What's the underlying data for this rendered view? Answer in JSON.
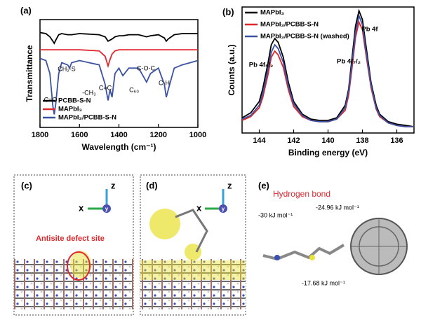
{
  "chart_data": [
    {
      "type": "line",
      "panel": "(a)",
      "xlabel": "Wavelength (cm⁻¹)",
      "ylabel": "Transmittance",
      "xlim": [
        1800,
        1000
      ],
      "xticks": [
        1800,
        1600,
        1400,
        1200,
        1000
      ],
      "ylim": [
        0,
        100
      ],
      "legend": "lower left",
      "x": [
        1800,
        1770,
        1750,
        1735,
        1728,
        1720,
        1705,
        1690,
        1660,
        1650,
        1640,
        1600,
        1500,
        1470,
        1455,
        1445,
        1435,
        1420,
        1400,
        1380,
        1350,
        1300,
        1260,
        1240,
        1200,
        1170,
        1160,
        1150,
        1120,
        1080,
        1040,
        1000
      ],
      "series": [
        {
          "name": "PCBB-S-N",
          "color": "#000000",
          "values": [
            88,
            87,
            84,
            80,
            78,
            81,
            86,
            87,
            86,
            86,
            86,
            87,
            86,
            84,
            80,
            81,
            82,
            84,
            85,
            85,
            86,
            86,
            84,
            85,
            86,
            83,
            80,
            82,
            86,
            87,
            87,
            87
          ]
        },
        {
          "name": "MAPbI₃",
          "color": "#e0262b",
          "values": [
            72,
            72,
            72,
            72,
            72,
            72,
            72,
            72,
            72,
            72,
            72,
            72,
            71,
            66,
            57,
            63,
            68,
            71,
            72,
            72,
            72,
            72,
            72,
            72,
            72,
            72,
            72,
            72,
            72,
            72,
            72,
            72
          ]
        },
        {
          "name": "MAPbI₃/PCBB-S-N",
          "color": "#3b52a3",
          "values": [
            64,
            62,
            50,
            20,
            12,
            22,
            50,
            60,
            58,
            55,
            60,
            62,
            58,
            40,
            25,
            35,
            28,
            50,
            55,
            48,
            55,
            55,
            42,
            50,
            55,
            40,
            28,
            35,
            55,
            58,
            60,
            62
          ]
        }
      ],
      "annotations": [
        "C=O",
        "CH₂-S",
        "-CH₃",
        "C=C",
        "C₆₀",
        "C-O-C",
        "C-H"
      ]
    },
    {
      "type": "line",
      "panel": "(b)",
      "xlabel": "Binding energy (eV)",
      "ylabel": "Counts (a.u.)",
      "xlim": [
        145,
        135
      ],
      "xticks": [
        144,
        142,
        140,
        138,
        136
      ],
      "ylim": [
        0,
        100
      ],
      "legend": "upper left",
      "x": [
        145,
        144.5,
        144,
        143.8,
        143.5,
        143.3,
        143.1,
        142.9,
        142.6,
        142.3,
        142,
        141.5,
        141,
        140.5,
        140,
        139.5,
        139,
        138.8,
        138.6,
        138.4,
        138.2,
        138,
        137.8,
        137.5,
        137.2,
        137,
        136.5,
        136,
        135.5,
        135
      ],
      "series": [
        {
          "name": "MAPbI₃",
          "color": "#000000",
          "values": [
            12,
            16,
            25,
            35,
            55,
            70,
            75,
            72,
            60,
            40,
            25,
            15,
            11,
            10,
            10,
            12,
            22,
            35,
            60,
            85,
            97,
            90,
            70,
            40,
            22,
            15,
            9,
            7,
            6,
            5
          ]
        },
        {
          "name": "MAPbI₃/PCBB-S-N",
          "color": "#e0262b",
          "values": [
            10,
            13,
            20,
            28,
            46,
            60,
            65,
            62,
            52,
            34,
            21,
            13,
            10,
            9,
            9,
            11,
            18,
            30,
            52,
            76,
            88,
            82,
            63,
            36,
            19,
            13,
            8,
            6,
            5,
            5
          ]
        },
        {
          "name": "MAPbI₃/PCBB-S-N (washed)",
          "color": "#3b52a3",
          "values": [
            11,
            14,
            22,
            31,
            50,
            64,
            70,
            67,
            56,
            37,
            23,
            14,
            10,
            9,
            9,
            11,
            20,
            33,
            56,
            80,
            93,
            86,
            66,
            38,
            20,
            14,
            8,
            6,
            5,
            5
          ]
        }
      ],
      "annotations": [
        "Pb 4f",
        "Pb 4f₅/₂",
        "Pb 4f₇/₂"
      ]
    }
  ],
  "panels": [
    {
      "label": "(c)",
      "axes": [
        "z",
        "x",
        "y"
      ],
      "annotation": "Antisite defect site"
    },
    {
      "label": "(d)",
      "axes": [
        "z",
        "x",
        "y"
      ]
    },
    {
      "label": "(e)",
      "title": "Hydrogen bond",
      "energies": [
        "-30 kJ mol⁻¹",
        "-24.96 kJ mol⁻¹",
        "-17.68 kJ mol⁻¹"
      ]
    }
  ]
}
